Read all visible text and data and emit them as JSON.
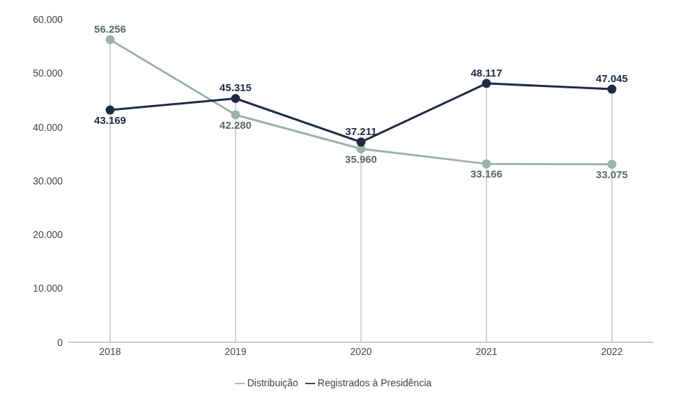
{
  "chart_data": {
    "type": "line",
    "categories": [
      "2018",
      "2019",
      "2020",
      "2021",
      "2022"
    ],
    "series": [
      {
        "name": "Distribuição",
        "color": "#9cb3a7",
        "values": [
          56256,
          42280,
          35960,
          33166,
          33075
        ],
        "value_labels": [
          "56.256",
          "42.280",
          "35.960",
          "33.166",
          "33.075"
        ]
      },
      {
        "name": "Registrados à Presidência",
        "color": "#1f2a44",
        "values": [
          43169,
          45315,
          37211,
          48117,
          47045
        ],
        "value_labels": [
          "43.169",
          "45.315",
          "37.211",
          "48.117",
          "47.045"
        ]
      }
    ],
    "ylim": [
      0,
      60000
    ],
    "yticks": [
      {
        "value": 0,
        "label": "0"
      },
      {
        "value": 10000,
        "label": "10.000"
      },
      {
        "value": 20000,
        "label": "20.000"
      },
      {
        "value": 30000,
        "label": "30.000"
      },
      {
        "value": 40000,
        "label": "40.000"
      },
      {
        "value": 50000,
        "label": "50.000"
      },
      {
        "value": 60000,
        "label": "60.000"
      }
    ],
    "grid": "x",
    "legend": "bottom",
    "marker": "circle",
    "line_style": "solid"
  }
}
